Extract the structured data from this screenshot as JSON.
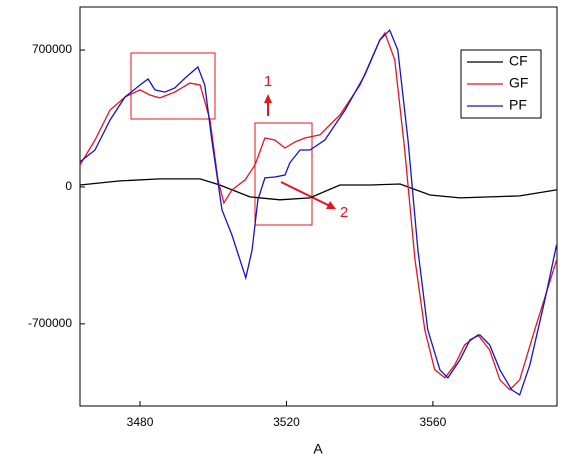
{
  "chart_data": {
    "type": "line",
    "xlabel": "A",
    "xlim": [
      3463.6,
      3593.9
    ],
    "xticks": [
      3480,
      3520,
      3560
    ],
    "ylim": [
      -1120000,
      920000
    ],
    "yticks": [
      700000,
      0,
      -700000
    ],
    "legend": "upper right",
    "annotations": [
      {
        "text": "1"
      },
      {
        "text": "2"
      }
    ],
    "series": [
      {
        "name": "CF",
        "color": "#000000",
        "x": [
          3463.6,
          3474.5,
          3485.4,
          3496.4,
          3501.8,
          3510.0,
          3518.2,
          3526.4,
          3534.6,
          3542.8,
          3551.0,
          3559.2,
          3567.4,
          3575.5,
          3583.7,
          3593.8
        ],
        "values": [
          10000,
          31000,
          41000,
          41000,
          10000,
          -51000,
          -66000,
          -56000,
          10000,
          10000,
          15000,
          -41000,
          -56000,
          -51000,
          -46000,
          -15000
        ]
      },
      {
        "name": "GF",
        "color": "#e8141e",
        "x": [
          3463.6,
          3467.7,
          3471.8,
          3475.9,
          3480.0,
          3482.7,
          3485.4,
          3489.5,
          3493.6,
          3496.4,
          3499.1,
          3501.3,
          3502.9,
          3505.1,
          3508.7,
          3511.4,
          3514.1,
          3516.8,
          3519.6,
          3522.3,
          3525.0,
          3529.1,
          3534.6,
          3540.1,
          3545.5,
          3546.9,
          3549.6,
          3552.3,
          3555.1,
          3557.8,
          3560.5,
          3563.3,
          3566.0,
          3568.7,
          3572.3,
          3575.5,
          3578.3,
          3581.0,
          3583.7,
          3587.8,
          3593.8
        ],
        "values": [
          112000,
          240000,
          393000,
          460000,
          496000,
          470000,
          455000,
          485000,
          531000,
          521000,
          342000,
          36000,
          -82000,
          -15000,
          36000,
          112000,
          250000,
          240000,
          199000,
          230000,
          250000,
          266000,
          368000,
          521000,
          751000,
          787000,
          649000,
          189000,
          -373000,
          -731000,
          -935000,
          -976000,
          -909000,
          -807000,
          -756000,
          -833000,
          -986000,
          -1037000,
          -986000,
          -731000,
          -373000
        ]
      },
      {
        "name": "PF",
        "color": "#1414c8",
        "x": [
          3463.6,
          3467.7,
          3471.8,
          3475.9,
          3480.0,
          3482.2,
          3484.1,
          3486.8,
          3489.5,
          3492.3,
          3495.8,
          3497.7,
          3499.6,
          3502.4,
          3505.1,
          3507.3,
          3508.9,
          3510.6,
          3512.2,
          3514.1,
          3516.8,
          3519.6,
          3520.9,
          3523.7,
          3526.4,
          3530.5,
          3536.0,
          3541.4,
          3545.5,
          3548.2,
          3550.4,
          3553.2,
          3555.9,
          3558.6,
          3561.9,
          3564.1,
          3567.4,
          3570.1,
          3572.8,
          3575.5,
          3578.3,
          3581.5,
          3583.7,
          3586.5,
          3590.6,
          3593.8
        ],
        "values": [
          128000,
          189000,
          342000,
          460000,
          521000,
          552000,
          496000,
          485000,
          506000,
          557000,
          613000,
          521000,
          240000,
          -118000,
          -245000,
          -373000,
          -465000,
          -322000,
          -66000,
          46000,
          51000,
          61000,
          123000,
          189000,
          189000,
          240000,
          393000,
          572000,
          751000,
          802000,
          700000,
          240000,
          -322000,
          -731000,
          -935000,
          -976000,
          -884000,
          -782000,
          -756000,
          -807000,
          -935000,
          -1037000,
          -1063000,
          -909000,
          -577000,
          -296000
        ]
      }
    ]
  }
}
